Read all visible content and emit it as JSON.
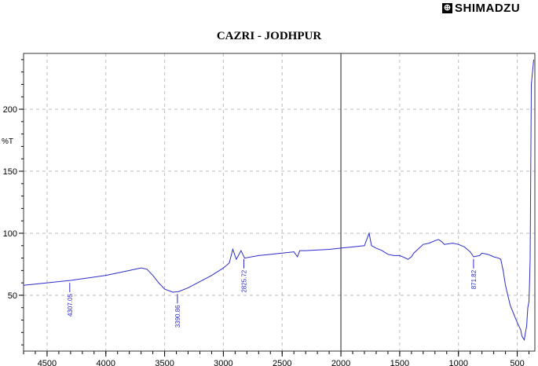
{
  "logo": {
    "text": "SHIMADZU"
  },
  "chart_data": {
    "type": "line",
    "title": "CAZRI - JODHPUR",
    "ylabel": "%T",
    "xlabel": "",
    "xlim": [
      4700,
      350
    ],
    "ylim": [
      5,
      245
    ],
    "xticks": [
      4500,
      4000,
      3500,
      3000,
      2500,
      2000,
      1500,
      1000,
      500
    ],
    "yticks": [
      50,
      100,
      150,
      200
    ],
    "grid": true,
    "color": "#2b2bc8",
    "marker_line_x": 2000,
    "series": [
      {
        "x": [
          4700,
          4500,
          4300,
          4000,
          3900,
          3800,
          3750,
          3700,
          3650,
          3600,
          3550,
          3500,
          3430,
          3380,
          3300,
          3200,
          3100,
          3000,
          2950,
          2920,
          2890,
          2850,
          2820,
          2700,
          2600,
          2500,
          2400,
          2370,
          2350,
          2300,
          2100,
          2000,
          1900,
          1800,
          1760,
          1740,
          1700,
          1650,
          1600,
          1550,
          1500,
          1450,
          1430,
          1400,
          1380,
          1300,
          1250,
          1200,
          1170,
          1140,
          1120,
          1050,
          1000,
          950,
          900,
          871,
          820,
          800,
          750,
          700,
          660,
          640,
          620,
          600,
          580,
          560,
          530,
          500,
          470,
          460,
          440,
          430,
          420,
          410,
          400,
          395,
          390,
          385,
          380,
          370,
          360
        ],
        "y": [
          58,
          60,
          62,
          66,
          68,
          70,
          71,
          72,
          71,
          66,
          60,
          55,
          52.5,
          53,
          56,
          61,
          66,
          72,
          76,
          87,
          79,
          86,
          80,
          82,
          83,
          84,
          85,
          81,
          86,
          86,
          87,
          88,
          89,
          90,
          100,
          90,
          88,
          86,
          83,
          82,
          82,
          80,
          79,
          81,
          84,
          91,
          92,
          94,
          95,
          93,
          91,
          92,
          91,
          89,
          85,
          81,
          82,
          84,
          83,
          81,
          80,
          79,
          70,
          58,
          50,
          42,
          35,
          28,
          22,
          17,
          14,
          20,
          25,
          40,
          45,
          60,
          80,
          150,
          220,
          230,
          240
        ]
      }
    ],
    "annotations": [
      {
        "x": 4307.05,
        "label": "4307.05"
      },
      {
        "x": 3390.86,
        "label": "3390.86"
      },
      {
        "x": 2825.72,
        "label": "2825.72"
      },
      {
        "x": 871.82,
        "label": "871.82"
      }
    ]
  }
}
